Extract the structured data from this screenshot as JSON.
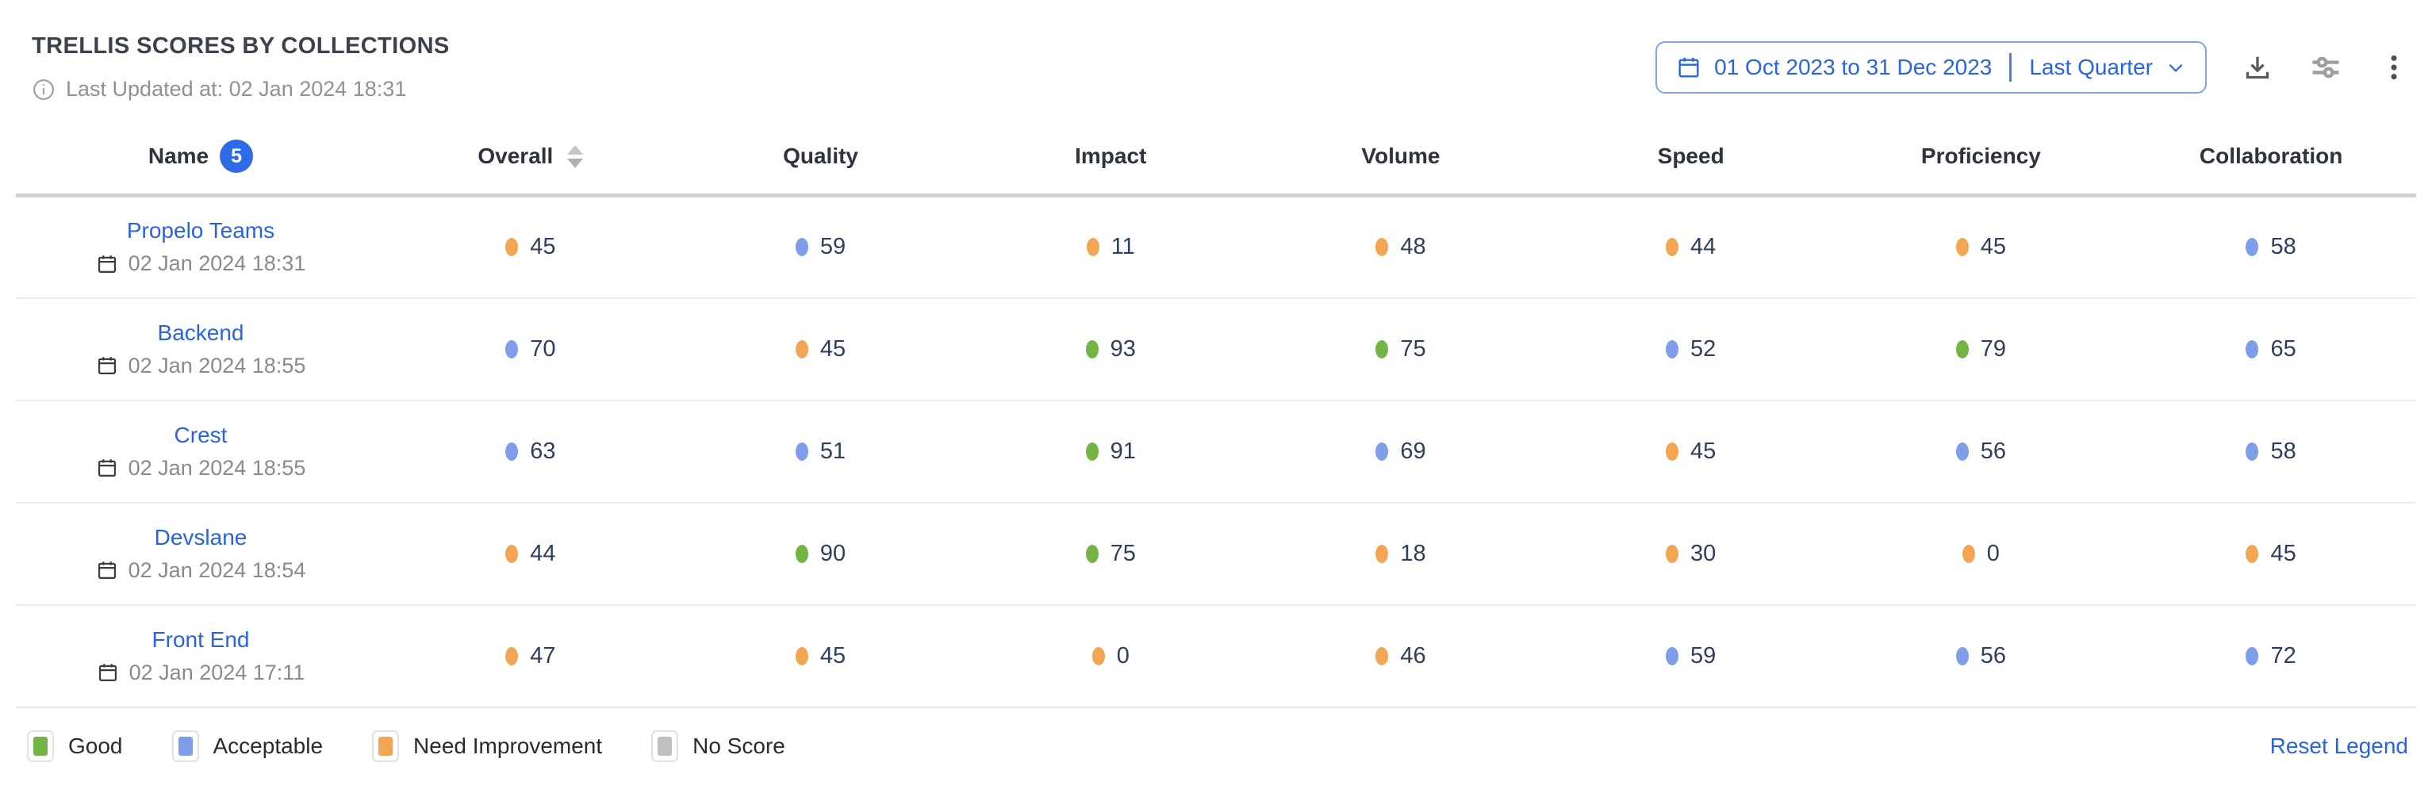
{
  "header": {
    "title": "TRELLIS SCORES BY COLLECTIONS",
    "last_updated": "Last Updated at: 02 Jan 2024 18:31",
    "date_picker": {
      "range_text": "01 Oct 2023 to 31 Dec 2023",
      "preset_label": "Last Quarter"
    }
  },
  "table": {
    "name_badge": "5",
    "columns": [
      "Name",
      "Overall",
      "Quality",
      "Impact",
      "Volume",
      "Speed",
      "Proficiency",
      "Collaboration"
    ],
    "rows": [
      {
        "name": "Propelo Teams",
        "timestamp": "02 Jan 2024 18:31",
        "scores": [
          {
            "value": "45",
            "level": "need_improvement"
          },
          {
            "value": "59",
            "level": "acceptable"
          },
          {
            "value": "11",
            "level": "need_improvement"
          },
          {
            "value": "48",
            "level": "need_improvement"
          },
          {
            "value": "44",
            "level": "need_improvement"
          },
          {
            "value": "45",
            "level": "need_improvement"
          },
          {
            "value": "58",
            "level": "acceptable"
          }
        ]
      },
      {
        "name": "Backend",
        "timestamp": "02 Jan 2024 18:55",
        "scores": [
          {
            "value": "70",
            "level": "acceptable"
          },
          {
            "value": "45",
            "level": "need_improvement"
          },
          {
            "value": "93",
            "level": "good"
          },
          {
            "value": "75",
            "level": "good"
          },
          {
            "value": "52",
            "level": "acceptable"
          },
          {
            "value": "79",
            "level": "good"
          },
          {
            "value": "65",
            "level": "acceptable"
          }
        ]
      },
      {
        "name": "Crest",
        "timestamp": "02 Jan 2024 18:55",
        "scores": [
          {
            "value": "63",
            "level": "acceptable"
          },
          {
            "value": "51",
            "level": "acceptable"
          },
          {
            "value": "91",
            "level": "good"
          },
          {
            "value": "69",
            "level": "acceptable"
          },
          {
            "value": "45",
            "level": "need_improvement"
          },
          {
            "value": "56",
            "level": "acceptable"
          },
          {
            "value": "58",
            "level": "acceptable"
          }
        ]
      },
      {
        "name": "Devslane",
        "timestamp": "02 Jan 2024 18:54",
        "scores": [
          {
            "value": "44",
            "level": "need_improvement"
          },
          {
            "value": "90",
            "level": "good"
          },
          {
            "value": "75",
            "level": "good"
          },
          {
            "value": "18",
            "level": "need_improvement"
          },
          {
            "value": "30",
            "level": "need_improvement"
          },
          {
            "value": "0",
            "level": "need_improvement"
          },
          {
            "value": "45",
            "level": "need_improvement"
          }
        ]
      },
      {
        "name": "Front End",
        "timestamp": "02 Jan 2024 17:11",
        "scores": [
          {
            "value": "47",
            "level": "need_improvement"
          },
          {
            "value": "45",
            "level": "need_improvement"
          },
          {
            "value": "0",
            "level": "need_improvement"
          },
          {
            "value": "46",
            "level": "need_improvement"
          },
          {
            "value": "59",
            "level": "acceptable"
          },
          {
            "value": "56",
            "level": "acceptable"
          },
          {
            "value": "72",
            "level": "acceptable"
          }
        ]
      }
    ]
  },
  "legend": {
    "items": [
      {
        "label": "Good",
        "level": "good"
      },
      {
        "label": "Acceptable",
        "level": "acceptable"
      },
      {
        "label": "Need Improvement",
        "level": "need_improvement"
      },
      {
        "label": "No Score",
        "level": "no_score"
      }
    ],
    "reset_label": "Reset Legend"
  },
  "score_colors": {
    "good": "#72b544",
    "acceptable": "#7e9ee9",
    "need_improvement": "#f2a653",
    "no_score": "#c0c0c0"
  }
}
